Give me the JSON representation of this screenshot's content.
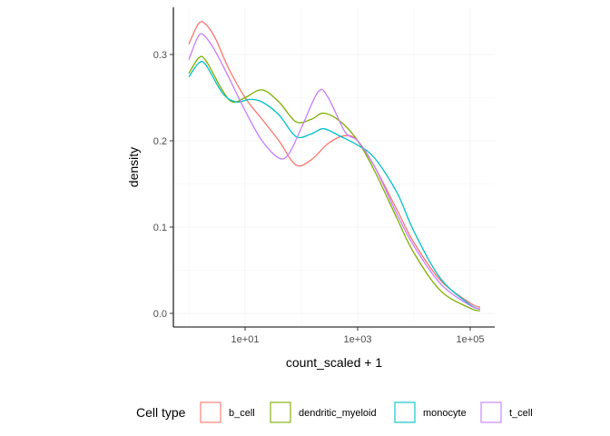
{
  "chart_data": {
    "type": "line",
    "title": "",
    "xlabel": "count_scaled + 1",
    "ylabel": "density",
    "x_scale": "log10",
    "xlim": [
      1,
      100000
    ],
    "ylim": [
      0,
      0.34
    ],
    "x_ticks": [
      {
        "value": 10,
        "label": "1e+01"
      },
      {
        "value": 1000,
        "label": "1e+03"
      },
      {
        "value": 100000,
        "label": "1e+05"
      }
    ],
    "y_ticks": [
      {
        "value": 0.0,
        "label": "0.0"
      },
      {
        "value": 0.1,
        "label": "0.1"
      },
      {
        "value": 0.2,
        "label": "0.2"
      },
      {
        "value": 0.3,
        "label": "0.3"
      }
    ],
    "grid": true,
    "legend": {
      "title": "Cell type",
      "position": "bottom"
    },
    "series": [
      {
        "name": "b_cell",
        "color": "#F8766D",
        "points": [
          [
            1,
            0.312
          ],
          [
            1.5,
            0.336
          ],
          [
            2,
            0.335
          ],
          [
            3,
            0.318
          ],
          [
            5,
            0.285
          ],
          [
            10,
            0.25
          ],
          [
            20,
            0.225
          ],
          [
            40,
            0.2
          ],
          [
            80,
            0.172
          ],
          [
            150,
            0.178
          ],
          [
            300,
            0.197
          ],
          [
            600,
            0.206
          ],
          [
            1000,
            0.2
          ],
          [
            2000,
            0.17
          ],
          [
            5000,
            0.12
          ],
          [
            10000,
            0.082
          ],
          [
            30000,
            0.038
          ],
          [
            100000,
            0.012
          ],
          [
            150000,
            0.007
          ]
        ]
      },
      {
        "name": "dendritic_myeloid",
        "color": "#7CAE00",
        "points": [
          [
            1,
            0.278
          ],
          [
            1.5,
            0.296
          ],
          [
            2,
            0.293
          ],
          [
            4,
            0.258
          ],
          [
            6,
            0.245
          ],
          [
            10,
            0.25
          ],
          [
            20,
            0.259
          ],
          [
            40,
            0.245
          ],
          [
            80,
            0.222
          ],
          [
            150,
            0.225
          ],
          [
            250,
            0.232
          ],
          [
            500,
            0.222
          ],
          [
            1000,
            0.2
          ],
          [
            2000,
            0.165
          ],
          [
            5000,
            0.11
          ],
          [
            10000,
            0.07
          ],
          [
            30000,
            0.026
          ],
          [
            100000,
            0.006
          ],
          [
            150000,
            0.003
          ]
        ]
      },
      {
        "name": "monocyte",
        "color": "#00BFC4",
        "points": [
          [
            1,
            0.274
          ],
          [
            1.5,
            0.29
          ],
          [
            2,
            0.288
          ],
          [
            4,
            0.255
          ],
          [
            7,
            0.245
          ],
          [
            12,
            0.248
          ],
          [
            20,
            0.245
          ],
          [
            40,
            0.23
          ],
          [
            80,
            0.205
          ],
          [
            150,
            0.208
          ],
          [
            250,
            0.214
          ],
          [
            500,
            0.205
          ],
          [
            1000,
            0.195
          ],
          [
            2000,
            0.18
          ],
          [
            5000,
            0.14
          ],
          [
            10000,
            0.095
          ],
          [
            30000,
            0.04
          ],
          [
            100000,
            0.01
          ],
          [
            150000,
            0.005
          ]
        ]
      },
      {
        "name": "t_cell",
        "color": "#C77CFF",
        "points": [
          [
            1,
            0.294
          ],
          [
            1.5,
            0.322
          ],
          [
            2,
            0.32
          ],
          [
            3,
            0.303
          ],
          [
            5,
            0.275
          ],
          [
            10,
            0.235
          ],
          [
            20,
            0.2
          ],
          [
            40,
            0.18
          ],
          [
            60,
            0.185
          ],
          [
            100,
            0.215
          ],
          [
            200,
            0.257
          ],
          [
            300,
            0.25
          ],
          [
            600,
            0.21
          ],
          [
            1000,
            0.2
          ],
          [
            2000,
            0.17
          ],
          [
            5000,
            0.115
          ],
          [
            10000,
            0.078
          ],
          [
            30000,
            0.034
          ],
          [
            100000,
            0.009
          ],
          [
            150000,
            0.005
          ]
        ]
      }
    ]
  }
}
